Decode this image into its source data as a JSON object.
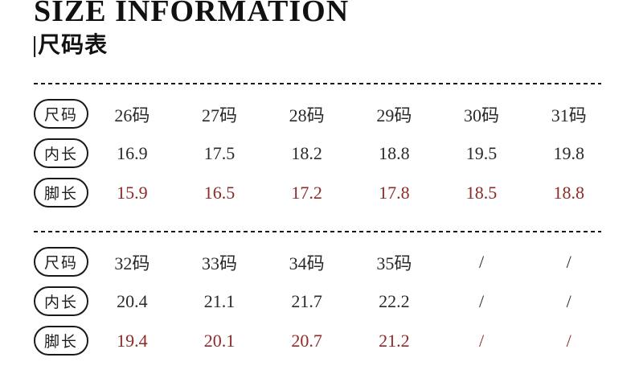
{
  "header": {
    "title": "SIZE INFORMATION",
    "subtitle": "|尺码表"
  },
  "colors": {
    "text_black": "#1c1c1c",
    "foot_length_red": "#8e2a28",
    "background": "#ffffff"
  },
  "tables": [
    {
      "rows": [
        {
          "label": "尺码",
          "values": [
            "26码",
            "27码",
            "28码",
            "29码",
            "30码",
            "31码"
          ]
        },
        {
          "label": "内长",
          "values": [
            "16.9",
            "17.5",
            "18.2",
            "18.8",
            "19.5",
            "19.8"
          ]
        },
        {
          "label": "脚长",
          "values": [
            "15.9",
            "16.5",
            "17.2",
            "17.8",
            "18.5",
            "18.8"
          ]
        }
      ]
    },
    {
      "rows": [
        {
          "label": "尺码",
          "values": [
            "32码",
            "33码",
            "34码",
            "35码",
            "/",
            "/"
          ]
        },
        {
          "label": "内长",
          "values": [
            "20.4",
            "21.1",
            "21.7",
            "22.2",
            "/",
            "/"
          ]
        },
        {
          "label": "脚长",
          "values": [
            "19.4",
            "20.1",
            "20.7",
            "21.2",
            "/",
            "/"
          ]
        }
      ]
    }
  ]
}
